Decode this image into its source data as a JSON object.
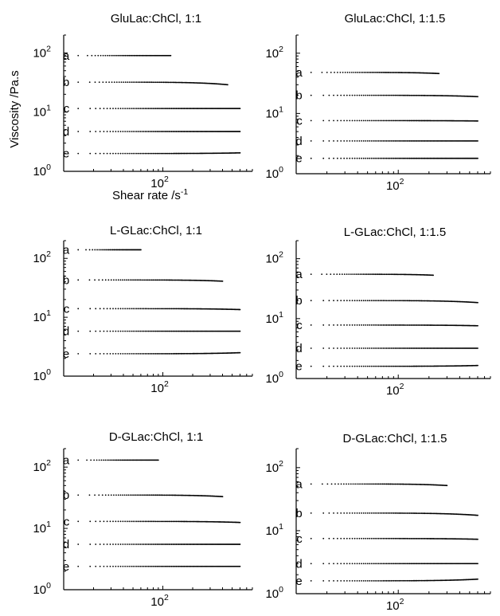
{
  "figure": {
    "ylabel": "Viscosity /Pa.s",
    "xlabel": "Shear rate /s",
    "xlabel_exp": "-1"
  },
  "chart_data": [
    {
      "type": "scatter",
      "title": "GluLac:ChCl, 1:1",
      "xscale": "log",
      "yscale": "log",
      "xlim": [
        10,
        800
      ],
      "ylim": [
        1,
        200
      ],
      "xticks": [
        {
          "base": "10",
          "exp": "2",
          "value": 100
        }
      ],
      "yticks": [
        {
          "base": "10",
          "exp": "0",
          "value": 1
        },
        {
          "base": "10",
          "exp": "1",
          "value": 10
        },
        {
          "base": "10",
          "exp": "2",
          "value": 100
        }
      ],
      "series": [
        {
          "name": "a",
          "x_range": [
            14,
            120
          ],
          "y_start": 90,
          "y_end": 90
        },
        {
          "name": "b",
          "x_range": [
            14,
            450
          ],
          "y_start": 32,
          "y_end": 29
        },
        {
          "name": "c",
          "x_range": [
            14,
            600
          ],
          "y_start": 11.5,
          "y_end": 11.5
        },
        {
          "name": "d",
          "x_range": [
            14,
            600
          ],
          "y_start": 4.7,
          "y_end": 4.7
        },
        {
          "name": "e",
          "x_range": [
            14,
            600
          ],
          "y_start": 2.0,
          "y_end": 2.05
        }
      ]
    },
    {
      "type": "scatter",
      "title": "GluLac:ChCl, 1:1.5",
      "xscale": "log",
      "yscale": "log",
      "xlim": [
        10,
        800
      ],
      "ylim": [
        1,
        200
      ],
      "xticks": [
        {
          "base": "10",
          "exp": "2",
          "value": 100
        }
      ],
      "yticks": [
        {
          "base": "10",
          "exp": "0",
          "value": 1
        },
        {
          "base": "10",
          "exp": "1",
          "value": 10
        },
        {
          "base": "10",
          "exp": "2",
          "value": 100
        }
      ],
      "series": [
        {
          "name": "a",
          "x_range": [
            14,
            250
          ],
          "y_start": 48,
          "y_end": 46
        },
        {
          "name": "b",
          "x_range": [
            14,
            600
          ],
          "y_start": 20,
          "y_end": 19
        },
        {
          "name": "c",
          "x_range": [
            14,
            600
          ],
          "y_start": 7.6,
          "y_end": 7.5
        },
        {
          "name": "d",
          "x_range": [
            14,
            600
          ],
          "y_start": 3.5,
          "y_end": 3.5
        },
        {
          "name": "e",
          "x_range": [
            14,
            600
          ],
          "y_start": 1.8,
          "y_end": 1.8
        }
      ]
    },
    {
      "type": "scatter",
      "title": "L-GLac:ChCl, 1:1",
      "xscale": "log",
      "yscale": "log",
      "xlim": [
        10,
        800
      ],
      "ylim": [
        1,
        200
      ],
      "xticks": [
        {
          "base": "10",
          "exp": "2",
          "value": 100
        }
      ],
      "yticks": [
        {
          "base": "10",
          "exp": "0",
          "value": 1
        },
        {
          "base": "10",
          "exp": "1",
          "value": 10
        },
        {
          "base": "10",
          "exp": "2",
          "value": 100
        }
      ],
      "series": [
        {
          "name": "a",
          "x_range": [
            14,
            60
          ],
          "y_start": 140,
          "y_end": 140
        },
        {
          "name": "b",
          "x_range": [
            14,
            400
          ],
          "y_start": 43,
          "y_end": 41
        },
        {
          "name": "c",
          "x_range": [
            14,
            600
          ],
          "y_start": 14,
          "y_end": 13.5
        },
        {
          "name": "d",
          "x_range": [
            14,
            600
          ],
          "y_start": 5.8,
          "y_end": 5.8
        },
        {
          "name": "e",
          "x_range": [
            14,
            600
          ],
          "y_start": 2.4,
          "y_end": 2.5
        }
      ]
    },
    {
      "type": "scatter",
      "title": "L-GLac:ChCl, 1:1.5",
      "xscale": "log",
      "yscale": "log",
      "xlim": [
        10,
        800
      ],
      "ylim": [
        1,
        200
      ],
      "xticks": [
        {
          "base": "10",
          "exp": "2",
          "value": 100
        }
      ],
      "yticks": [
        {
          "base": "10",
          "exp": "0",
          "value": 1
        },
        {
          "base": "10",
          "exp": "1",
          "value": 10
        },
        {
          "base": "10",
          "exp": "2",
          "value": 100
        }
      ],
      "series": [
        {
          "name": "a",
          "x_range": [
            14,
            220
          ],
          "y_start": 55,
          "y_end": 53
        },
        {
          "name": "b",
          "x_range": [
            14,
            600
          ],
          "y_start": 20,
          "y_end": 18.5
        },
        {
          "name": "c",
          "x_range": [
            14,
            600
          ],
          "y_start": 7.8,
          "y_end": 7.6
        },
        {
          "name": "d",
          "x_range": [
            14,
            600
          ],
          "y_start": 3.2,
          "y_end": 3.2
        },
        {
          "name": "e",
          "x_range": [
            14,
            600
          ],
          "y_start": 1.6,
          "y_end": 1.65
        }
      ]
    },
    {
      "type": "scatter",
      "title": "D-GLac:ChCl, 1:1",
      "xscale": "log",
      "yscale": "log",
      "xlim": [
        10,
        800
      ],
      "ylim": [
        1,
        200
      ],
      "xticks": [
        {
          "base": "10",
          "exp": "2",
          "value": 100
        }
      ],
      "yticks": [
        {
          "base": "10",
          "exp": "0",
          "value": 1
        },
        {
          "base": "10",
          "exp": "1",
          "value": 10
        },
        {
          "base": "10",
          "exp": "2",
          "value": 100
        }
      ],
      "series": [
        {
          "name": "a",
          "x_range": [
            14,
            90
          ],
          "y_start": 130,
          "y_end": 130
        },
        {
          "name": "b",
          "x_range": [
            14,
            400
          ],
          "y_start": 35,
          "y_end": 33
        },
        {
          "name": "c",
          "x_range": [
            14,
            600
          ],
          "y_start": 13,
          "y_end": 12.5
        },
        {
          "name": "d",
          "x_range": [
            14,
            600
          ],
          "y_start": 5.5,
          "y_end": 5.5
        },
        {
          "name": "e",
          "x_range": [
            14,
            600
          ],
          "y_start": 2.4,
          "y_end": 2.4
        }
      ]
    },
    {
      "type": "scatter",
      "title": "D-GLac:ChCl, 1:1.5",
      "xscale": "log",
      "yscale": "log",
      "xlim": [
        10,
        800
      ],
      "ylim": [
        1,
        200
      ],
      "xticks": [
        {
          "base": "10",
          "exp": "2",
          "value": 100
        }
      ],
      "yticks": [
        {
          "base": "10",
          "exp": "0",
          "value": 1
        },
        {
          "base": "10",
          "exp": "1",
          "value": 10
        },
        {
          "base": "10",
          "exp": "2",
          "value": 100
        }
      ],
      "series": [
        {
          "name": "a",
          "x_range": [
            14,
            300
          ],
          "y_start": 55,
          "y_end": 52
        },
        {
          "name": "b",
          "x_range": [
            14,
            600
          ],
          "y_start": 19,
          "y_end": 17.5
        },
        {
          "name": "c",
          "x_range": [
            14,
            600
          ],
          "y_start": 7.5,
          "y_end": 7.3
        },
        {
          "name": "d",
          "x_range": [
            14,
            600
          ],
          "y_start": 3.0,
          "y_end": 3.0
        },
        {
          "name": "e",
          "x_range": [
            14,
            600
          ],
          "y_start": 1.6,
          "y_end": 1.7
        }
      ]
    }
  ]
}
